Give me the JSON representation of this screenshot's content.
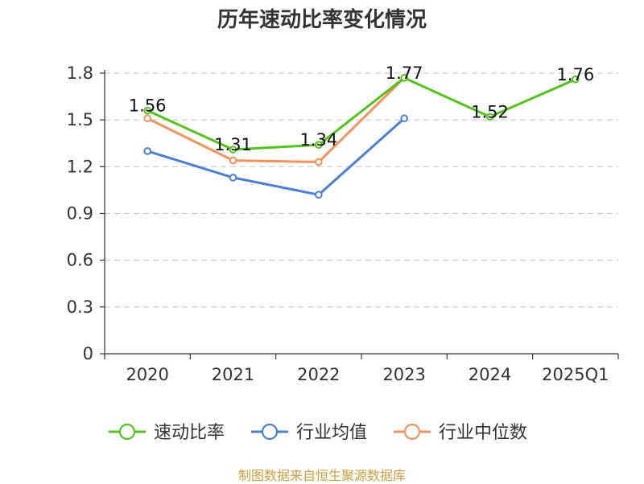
{
  "chart_data": {
    "type": "line",
    "title": "历年速动比率变化情况",
    "categories": [
      "2020",
      "2021",
      "2022",
      "2023",
      "2024",
      "2025Q1"
    ],
    "ylim": [
      0,
      1.8
    ],
    "yticks": [
      "0",
      "0.3",
      "0.6",
      "0.9",
      "1.2",
      "1.5",
      "1.8"
    ],
    "grid": true,
    "legend_position": "bottom",
    "series": [
      {
        "name": "速动比率",
        "color": "#52c41a",
        "values": [
          1.56,
          1.31,
          1.34,
          1.77,
          1.52,
          1.76
        ],
        "labels": [
          "1.56",
          "1.31",
          "1.34",
          "1.77",
          "1.52",
          "1.76"
        ]
      },
      {
        "name": "行业均值",
        "color": "#4a7fd4",
        "values": [
          1.3,
          1.13,
          1.02,
          1.51,
          null,
          null
        ]
      },
      {
        "name": "行业中位数",
        "color": "#f5915a",
        "values": [
          1.51,
          1.24,
          1.23,
          1.77,
          null,
          null
        ]
      }
    ]
  },
  "footer": {
    "source": "制图数据来自恒生聚源数据库"
  }
}
